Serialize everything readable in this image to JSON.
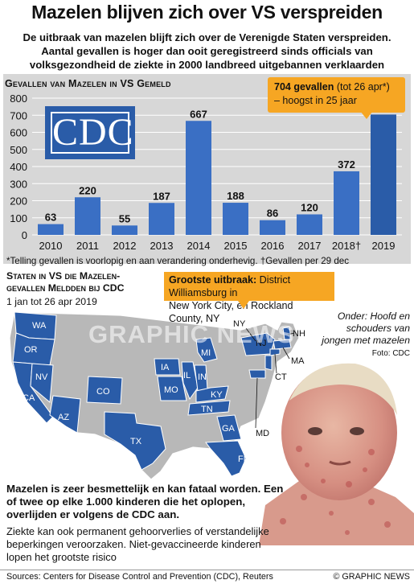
{
  "title": "Mazelen blijven zich over VS verspreiden",
  "subtitle_lines": [
    "De uitbraak van mazelen blijft zich over de Verenigde Staten verspreiden.",
    "Aantal gevallen is hoger dan ooit geregistreerd sinds officials van",
    "volksgezondheid de ziekte in 2000 landbreed uitgebannen verklaarden"
  ],
  "chart_heading": "Gevallen van Mazelen in VS Gemeld",
  "callout": {
    "bold": "704 gevallen",
    "rest": " (tot 26 apr*)",
    "line2": "– hoogst in 25 jaar"
  },
  "cdc_logo_text": "CDC",
  "footnote": "*Telling gevallen is voorlopig en aan verandering onderhevig. †Gevallen per 29 dec",
  "chart_data": {
    "type": "bar",
    "categories": [
      "2010",
      "2011",
      "2012",
      "2013",
      "2014",
      "2015",
      "2016",
      "2017",
      "2018†",
      "2019"
    ],
    "values": [
      63,
      220,
      55,
      187,
      667,
      188,
      86,
      120,
      372,
      704
    ],
    "data_labels": [
      "63",
      "220",
      "55",
      "187",
      "667",
      "188",
      "86",
      "120",
      "372",
      ""
    ],
    "title": "Gevallen van Mazelen in VS Gemeld",
    "ylim": [
      0,
      800
    ],
    "yticks": [
      0,
      100,
      200,
      300,
      400,
      500,
      600,
      700,
      800
    ],
    "grid": true,
    "bar_color": "#3a6fc4",
    "highlight_color": "#2a5ca8"
  },
  "map": {
    "heading_line1": "Staten in VS die Mazelen-",
    "heading_line2": "gevallen Meldden bij CDC",
    "date": "1 jan tot 26 apr 2019",
    "state_labels": [
      "WA",
      "OR",
      "CA",
      "NV",
      "AZ",
      "CO",
      "TX",
      "MI",
      "IL",
      "IN",
      "IA",
      "MO",
      "KY",
      "TN",
      "GA",
      "FL",
      "NY",
      "NJ",
      "NH",
      "MA",
      "CT",
      "MD"
    ],
    "affected_color": "#2a5ca8",
    "other_color": "#b8b8b8"
  },
  "outbreak": {
    "bold": "Grootste uitbraak:",
    "rest": " District Williamsburg in",
    "line2": "New York City, en Rockland County, NY"
  },
  "photo_caption": "Onder: Hoofd en schouders van jongen met mazelen",
  "photo_credit": "Foto: CDC",
  "body_bold": "Mazelen is zeer besmettelijk en kan fataal worden. Een of twee op elke 1.000 kinderen die het oplopen, overlijden er volgens de CDC aan.",
  "body_text": "Ziekte kan ook permanent gehoorverlies of verstandelijke beperkingen veroorzaken. Niet-gevaccineerde kinderen lopen het grootste risico",
  "watermark": "GRAPHIC NEWS",
  "sources": "Sources: Centers for Disease Control and Prevention (CDC), Reuters",
  "copyright": "© GRAPHIC NEWS"
}
